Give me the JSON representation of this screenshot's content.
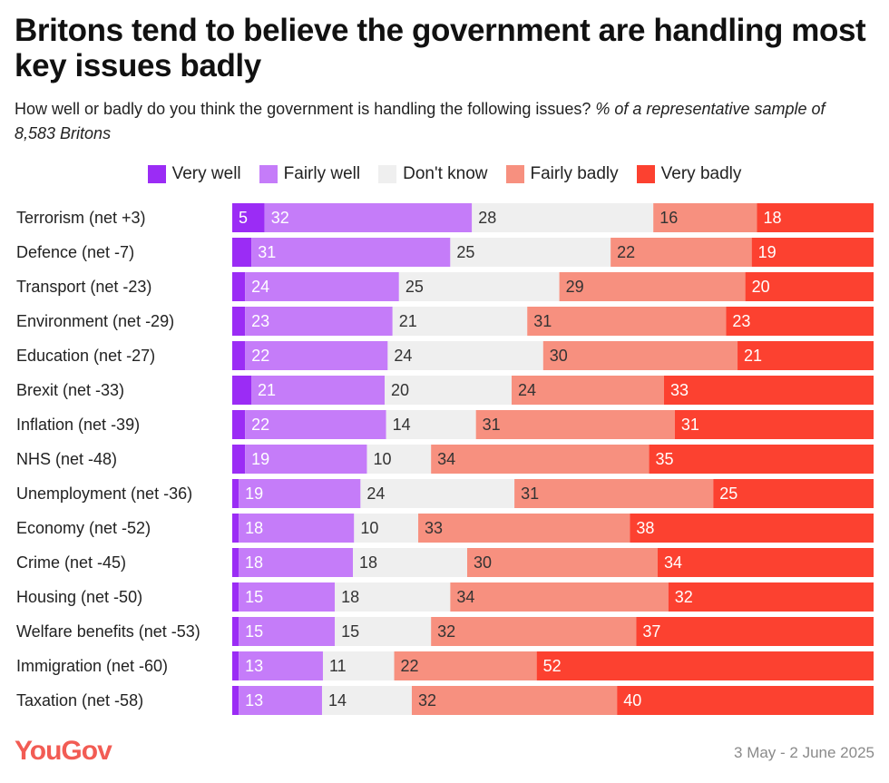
{
  "header": {
    "title": "Britons tend to believe the government are handling most key issues badly",
    "subtitle": "How well or badly do you think the government is handling the following issues?",
    "subtitle_note": "% of a representative sample of 8,583 Britons"
  },
  "footer": {
    "brand": "YouGov",
    "date_range": "3 May - 2 June 2025"
  },
  "chart_data": {
    "type": "bar",
    "orientation": "horizontal",
    "stacked": true,
    "normalized_to": 100,
    "legend_position": "top",
    "categories": [
      "Terrorism (net +3)",
      "Defence (net -7)",
      "Transport (net -23)",
      "Environment (net -29)",
      "Education (net -27)",
      "Brexit (net -33)",
      "Inflation (net -39)",
      "NHS (net -48)",
      "Unemployment (net -36)",
      "Economy (net -52)",
      "Crime (net -45)",
      "Housing (net -50)",
      "Welfare benefits (net -53)",
      "Immigration (net -60)",
      "Taxation (net -58)"
    ],
    "series": [
      {
        "name": "Very well",
        "color": "#9b2cf5",
        "label_color": "#ffffff",
        "values": [
          5,
          3,
          2,
          2,
          2,
          3,
          2,
          2,
          1,
          1,
          1,
          1,
          1,
          1,
          1
        ],
        "shown_labels": [
          true,
          false,
          false,
          false,
          false,
          false,
          false,
          false,
          false,
          false,
          false,
          false,
          false,
          false,
          false
        ]
      },
      {
        "name": "Fairly well",
        "color": "#c57cf9",
        "label_color": "#ffffff",
        "values": [
          32,
          31,
          24,
          23,
          22,
          21,
          22,
          19,
          19,
          18,
          18,
          15,
          15,
          13,
          13
        ],
        "shown_labels": [
          true,
          true,
          true,
          true,
          true,
          true,
          true,
          true,
          true,
          true,
          true,
          true,
          true,
          true,
          true
        ]
      },
      {
        "name": "Don't know",
        "color": "#efefef",
        "label_color": "#333333",
        "values": [
          28,
          25,
          25,
          21,
          24,
          20,
          14,
          10,
          24,
          10,
          18,
          18,
          15,
          11,
          14
        ],
        "shown_labels": [
          true,
          true,
          true,
          true,
          true,
          true,
          true,
          true,
          true,
          true,
          true,
          true,
          true,
          true,
          true
        ]
      },
      {
        "name": "Fairly badly",
        "color": "#f7907f",
        "label_color": "#333333",
        "values": [
          16,
          22,
          29,
          31,
          30,
          24,
          31,
          34,
          31,
          33,
          30,
          34,
          32,
          22,
          32
        ],
        "shown_labels": [
          true,
          true,
          true,
          true,
          true,
          true,
          true,
          true,
          true,
          true,
          true,
          true,
          true,
          true,
          true
        ]
      },
      {
        "name": "Very badly",
        "color": "#fc4130",
        "label_color": "#ffffff",
        "values": [
          18,
          19,
          20,
          23,
          21,
          33,
          31,
          35,
          25,
          38,
          34,
          32,
          37,
          52,
          40
        ],
        "shown_labels": [
          true,
          true,
          true,
          true,
          true,
          true,
          true,
          true,
          true,
          true,
          true,
          true,
          true,
          true,
          true
        ]
      }
    ]
  }
}
